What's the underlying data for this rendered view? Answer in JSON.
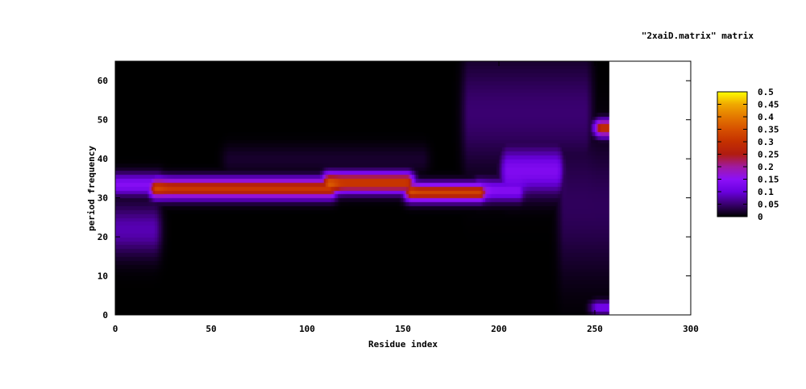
{
  "chart_data": {
    "type": "heatmap",
    "title": "\"2xaiD.matrix\" matrix",
    "xlabel": "Residue index",
    "ylabel": "period frequency",
    "xlim": [
      0,
      300
    ],
    "ylim": [
      0,
      65
    ],
    "x_ticks": [
      0,
      50,
      100,
      150,
      200,
      250,
      300
    ],
    "y_ticks": [
      0,
      10,
      20,
      30,
      40,
      50,
      60
    ],
    "data_x_extent": [
      0,
      257
    ],
    "colorbar": {
      "range": [
        0,
        0.5
      ],
      "ticks": [
        "0",
        "0.05",
        "0.1",
        "0.15",
        "0.2",
        "0.25",
        "0.3",
        "0.35",
        "0.4",
        "0.45",
        "0.5"
      ],
      "palette": [
        {
          "v": 0,
          "color": "#000000"
        },
        {
          "v": 0.05,
          "color": "#3a0070"
        },
        {
          "v": 0.1,
          "color": "#6a00e0"
        },
        {
          "v": 0.15,
          "color": "#8c10f8"
        },
        {
          "v": 0.2,
          "color": "#a01aa0"
        },
        {
          "v": 0.25,
          "color": "#b01c10"
        },
        {
          "v": 0.3,
          "color": "#c43000"
        },
        {
          "v": 0.35,
          "color": "#d65000"
        },
        {
          "v": 0.4,
          "color": "#e47800"
        },
        {
          "v": 0.45,
          "color": "#f0a800"
        },
        {
          "v": 0.5,
          "color": "#ffff00"
        }
      ]
    },
    "features": [
      {
        "residue_range": [
          0,
          22
        ],
        "period": 33.5,
        "width": 2.0,
        "value": 0.14
      },
      {
        "residue_range": [
          22,
          112
        ],
        "period": 32.5,
        "width": 1.8,
        "value": 0.31
      },
      {
        "residue_range": [
          112,
          152
        ],
        "period": 34,
        "width": 1.8,
        "value": 0.32
      },
      {
        "residue_range": [
          155,
          190
        ],
        "period": 31.5,
        "width": 1.6,
        "value": 0.33
      },
      {
        "residue_range": [
          190,
          210
        ],
        "period": 32,
        "width": 2.0,
        "value": 0.14
      },
      {
        "residue_range": [
          0,
          20
        ],
        "period": 22,
        "width": 4.5,
        "value": 0.08
      },
      {
        "residue_range": [
          60,
          160
        ],
        "period": 40,
        "width": 2.5,
        "value": 0.02
      },
      {
        "residue_range": [
          185,
          245
        ],
        "period": 52,
        "width": 10,
        "value": 0.05
      },
      {
        "residue_range": [
          205,
          230
        ],
        "period": 37,
        "width": 4,
        "value": 0.13
      },
      {
        "residue_range": [
          235,
          257
        ],
        "period": 28,
        "width": 12,
        "value": 0.04
      },
      {
        "residue_range": [
          254,
          257
        ],
        "period": 48,
        "width": 1.5,
        "value": 0.3
      },
      {
        "residue_range": [
          252,
          257
        ],
        "period": 2,
        "width": 1.2,
        "value": 0.12
      }
    ]
  }
}
